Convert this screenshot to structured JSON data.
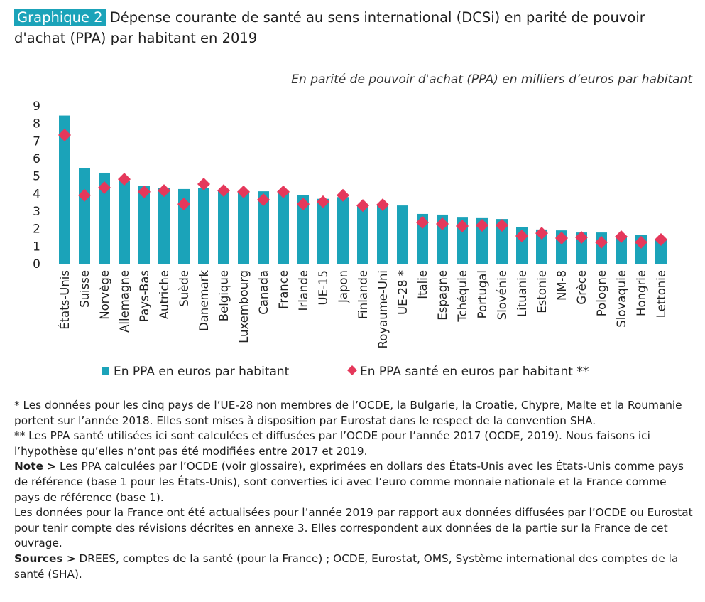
{
  "label": "Graphique 2",
  "chart_data": {
    "type": "bar",
    "title": "Dépense courante de santé au sens international (DCSi) en parité de pouvoir d'achat (PPA) par habitant en 2019",
    "subtitle": "En parité de pouvoir d'achat (PPA) en milliers d’euros par habitant",
    "categories": [
      "États-Unis",
      "Suisse",
      "Norvège",
      "Allemagne",
      "Pays-Bas",
      "Autriche",
      "Suède",
      "Danemark",
      "Belgique",
      "Luxembourg",
      "Canada",
      "France",
      "Irlande",
      "UE-15",
      "Japon",
      "Finlande",
      "Royaume-Uni",
      "UE-28 *",
      "Italie",
      "Espagne",
      "Tchéquie",
      "Portugal",
      "Slovénie",
      "Lituanie",
      "Estonie",
      "NM-8",
      "Grèce",
      "Pologne",
      "Slovaquie",
      "Hongrie",
      "Lettonie"
    ],
    "series": [
      {
        "name": "En PPA en euros par habitant",
        "color": "#1ba3b9",
        "marker": "bar",
        "values": [
          8.45,
          5.47,
          5.19,
          4.75,
          4.42,
          4.3,
          4.26,
          4.3,
          4.2,
          4.1,
          4.13,
          4.05,
          3.93,
          3.7,
          3.8,
          3.35,
          3.35,
          3.32,
          2.84,
          2.8,
          2.63,
          2.6,
          2.55,
          2.1,
          1.95,
          1.9,
          1.78,
          1.78,
          1.55,
          1.66,
          1.4
        ]
      },
      {
        "name": "En PPA santé en euros par habitant **",
        "color": "#e5385b",
        "marker": "diamond",
        "values": [
          7.34,
          3.9,
          4.34,
          4.82,
          4.1,
          4.17,
          3.4,
          4.54,
          4.17,
          4.1,
          3.65,
          4.1,
          3.4,
          3.53,
          3.9,
          3.32,
          3.36,
          null,
          2.35,
          2.27,
          2.15,
          2.19,
          2.19,
          1.58,
          1.74,
          1.46,
          1.5,
          1.22,
          1.54,
          1.22,
          1.38
        ]
      }
    ],
    "ylim": [
      0,
      9
    ],
    "yticks": [
      0,
      1,
      2,
      3,
      4,
      5,
      6,
      7,
      8,
      9
    ],
    "grid": false
  },
  "notes": [
    {
      "text": "* Les données pour les cinq pays de l’UE-28 non membres de l’OCDE, la Bulgarie, la Croatie, Chypre, Malte et la Roumanie portent sur l’année 2018. Elles sont mises à disposition par Eurostat dans le respect de la convention SHA."
    },
    {
      "text": "** Les PPA santé utilisées ici sont calculées et diffusées par l’OCDE pour l’année 2017 (OCDE, 2019). Nous faisons ici l’hypothèse qu’elles n’ont pas été modifiées entre 2017 et 2019."
    },
    {
      "label": "Note >",
      "text": "Les PPA calculées par l’OCDE (voir glossaire), exprimées en dollars des États-Unis avec les États-Unis comme pays de référence (base 1 pour les États-Unis), sont converties ici avec l’euro comme monnaie nationale et la France comme pays de référence (base 1)."
    },
    {
      "text": "Les données pour la France ont été actualisées pour l’année 2019 par rapport aux données diffusées par l’OCDE ou Eurostat pour tenir compte des révisions décrites en annexe 3. Elles correspondent aux données de la partie sur la France de cet ouvrage."
    },
    {
      "label": "Sources >",
      "text": "DREES, comptes de la santé (pour la France) ; OCDE, Eurostat, OMS, Système international des comptes de la santé (SHA)."
    }
  ]
}
